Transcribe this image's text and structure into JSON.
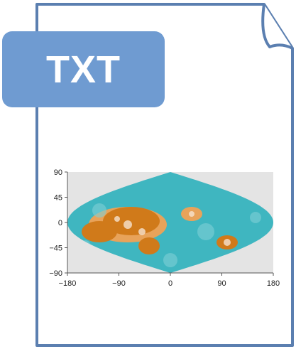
{
  "file_icon": {
    "type_label": "TXT",
    "badge_color": "#6f9bd1",
    "border_color": "#5b7fb0"
  },
  "thumbnail": {
    "type": "heatmap",
    "projection": "sinusoidal world map",
    "x_ticks": [
      "−180",
      "−90",
      "0",
      "90",
      "180"
    ],
    "y_ticks": [
      "90",
      "45",
      "0",
      "−45",
      "−90"
    ],
    "colors": {
      "background": "#e4e4e4",
      "ocean": "#3fb6c0",
      "land_high": "#d07a1a",
      "land_mid": "#e8a35a",
      "land_low": "#f6e3cf"
    }
  }
}
